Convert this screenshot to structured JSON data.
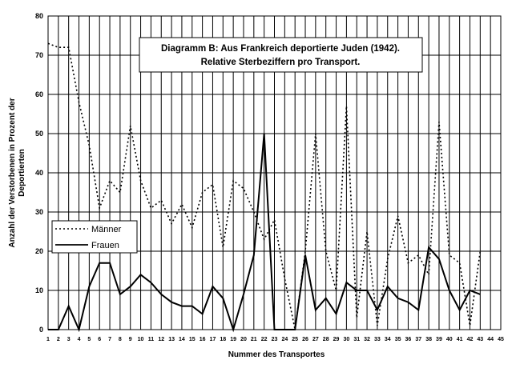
{
  "chart_data": {
    "type": "line",
    "title_line1": "Diagramm B: Aus Frankreich deportierte Juden (1942).",
    "title_line2": "Relative Sterbeziffern pro Transport.",
    "xlabel": "Nummer des Transportes",
    "ylabel_line1": "Anzahl der Verstorbenen in Prozent der",
    "ylabel_line2": "Deportierten",
    "ylim": [
      0,
      80
    ],
    "yticks": [
      "0",
      "10",
      "20",
      "30",
      "40",
      "50",
      "60",
      "70",
      "80"
    ],
    "x": [
      "1",
      "2",
      "3",
      "4",
      "5",
      "6",
      "7",
      "8",
      "9",
      "10",
      "11",
      "12",
      "13",
      "14",
      "15",
      "16",
      "17",
      "18",
      "19",
      "20",
      "21",
      "22",
      "23",
      "24",
      "25",
      "26",
      "27",
      "28",
      "29",
      "30",
      "31",
      "32",
      "33",
      "34",
      "35",
      "36",
      "37",
      "38",
      "39",
      "40",
      "41",
      "42",
      "43",
      "44",
      "45"
    ],
    "grid": true,
    "legend_position": "left, lower-middle",
    "series": [
      {
        "name": "Männer",
        "style": "dotted",
        "color": "#000000",
        "values": [
          73,
          72,
          72,
          58,
          47,
          31,
          38,
          35,
          52,
          38,
          31,
          33,
          27,
          32,
          26,
          35,
          37,
          21,
          38,
          36,
          30,
          23,
          28,
          13,
          0,
          20,
          50,
          20,
          10,
          57,
          3,
          25,
          1,
          18,
          29,
          17,
          19,
          14,
          53,
          19,
          17,
          1,
          20,
          null,
          null
        ]
      },
      {
        "name": "Frauen",
        "style": "solid",
        "color": "#000000",
        "values": [
          0,
          0,
          6,
          0,
          11,
          17,
          17,
          9,
          11,
          14,
          12,
          9,
          7,
          6,
          6,
          4,
          11,
          8,
          0,
          9,
          19,
          50,
          0,
          0,
          0,
          19,
          5,
          8,
          4,
          12,
          10,
          10,
          5,
          11,
          8,
          7,
          5,
          21,
          18,
          10,
          5,
          10,
          9,
          null,
          null
        ]
      }
    ]
  }
}
